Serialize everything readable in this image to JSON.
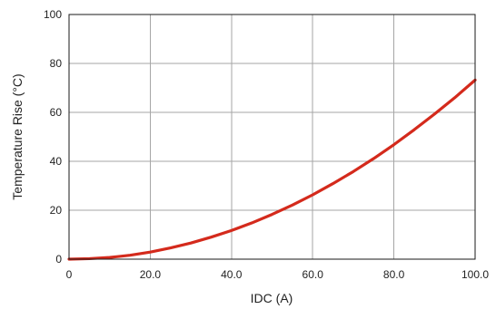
{
  "chart_data": {
    "type": "line",
    "title": "",
    "xlabel": "IDC (A)",
    "ylabel": "Temperature Rise (°C)",
    "xlim": [
      0,
      100
    ],
    "ylim": [
      0,
      100
    ],
    "x_ticks": [
      0,
      20,
      40,
      60,
      80,
      100
    ],
    "x_tick_labels": [
      "0",
      "20.0",
      "40.0",
      "60.0",
      "80.0",
      "100.0"
    ],
    "y_ticks": [
      0,
      20,
      40,
      60,
      80,
      100
    ],
    "y_tick_labels": [
      "0",
      "20",
      "40",
      "60",
      "80",
      "100"
    ],
    "grid": true,
    "legend": "none",
    "series": [
      {
        "color": "#d42a1c",
        "x": [
          0,
          5,
          10,
          15,
          20,
          25,
          30,
          35,
          40,
          45,
          50,
          55,
          60,
          65,
          70,
          75,
          80,
          85,
          90,
          95,
          100
        ],
        "y": [
          0,
          0.2,
          0.7,
          1.6,
          2.9,
          4.6,
          6.6,
          9.0,
          11.7,
          14.8,
          18.3,
          22.1,
          26.3,
          30.9,
          35.8,
          41.1,
          46.8,
          52.9,
          59.3,
          66.0,
          73.2
        ]
      }
    ]
  }
}
